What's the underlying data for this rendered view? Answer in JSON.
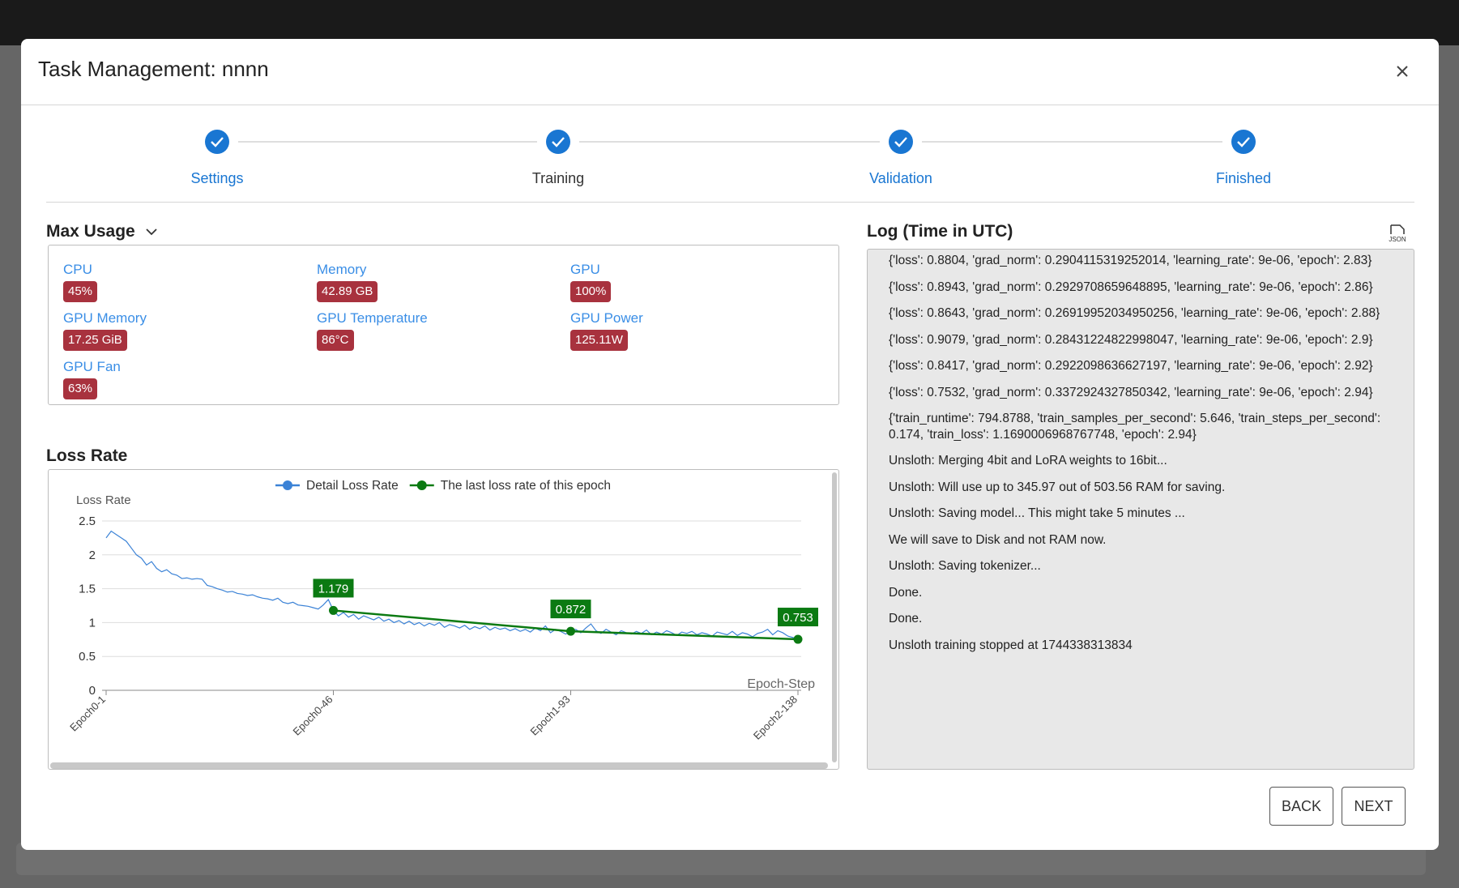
{
  "header": {
    "title": "Task Management: nnnn"
  },
  "steps": [
    "Settings",
    "Training",
    "Validation",
    "Finished"
  ],
  "max_usage": {
    "title": "Max Usage",
    "items": [
      {
        "label": "CPU",
        "value": "45%"
      },
      {
        "label": "Memory",
        "value": "42.89 GB"
      },
      {
        "label": "GPU",
        "value": "100%"
      },
      {
        "label": "GPU Memory",
        "value": "17.25 GiB"
      },
      {
        "label": "GPU Temperature",
        "value": "86°C"
      },
      {
        "label": "GPU Power",
        "value": "125.11W"
      },
      {
        "label": "GPU Fan",
        "value": "63%"
      }
    ]
  },
  "loss_rate": {
    "title": "Loss Rate"
  },
  "chart_data": {
    "type": "line",
    "y_label": "Loss Rate",
    "x_label": "Epoch-Step",
    "categories": [
      "Epoch0-1",
      null,
      null,
      null,
      null,
      null,
      null,
      null,
      null,
      null,
      null,
      null,
      null,
      null,
      null,
      null,
      null,
      null,
      null,
      null,
      null,
      null,
      null,
      null,
      null,
      null,
      null,
      null,
      null,
      null,
      null,
      null,
      null,
      null,
      null,
      null,
      null,
      null,
      null,
      null,
      null,
      null,
      null,
      null,
      null,
      "Epoch0-46",
      null,
      null,
      null,
      null,
      null,
      null,
      null,
      null,
      null,
      null,
      null,
      null,
      null,
      null,
      null,
      null,
      null,
      null,
      null,
      null,
      null,
      null,
      null,
      null,
      null,
      null,
      null,
      null,
      null,
      null,
      null,
      null,
      null,
      null,
      null,
      null,
      null,
      null,
      null,
      null,
      null,
      null,
      null,
      null,
      null,
      null,
      "Epoch1-93",
      null,
      null,
      null,
      null,
      null,
      null,
      null,
      null,
      null,
      null,
      null,
      null,
      null,
      null,
      null,
      null,
      null,
      null,
      null,
      null,
      null,
      null,
      null,
      null,
      null,
      null,
      null,
      null,
      null,
      null,
      null,
      null,
      null,
      null,
      null,
      null,
      null,
      null,
      null,
      null,
      null,
      null,
      null,
      null,
      "Epoch2-138"
    ],
    "series": [
      {
        "name": "Detail Loss Rate",
        "color": "#3b82d6",
        "values": [
          2.25,
          2.35,
          2.3,
          2.25,
          2.2,
          2.1,
          2.0,
          1.95,
          1.85,
          1.9,
          1.8,
          1.75,
          1.78,
          1.72,
          1.7,
          1.65,
          1.66,
          1.64,
          1.65,
          1.64,
          1.55,
          1.53,
          1.5,
          1.48,
          1.45,
          1.46,
          1.43,
          1.42,
          1.4,
          1.41,
          1.38,
          1.36,
          1.35,
          1.33,
          1.36,
          1.3,
          1.28,
          1.3,
          1.26,
          1.25,
          1.24,
          1.22,
          1.2,
          1.26,
          1.34,
          1.179,
          1.1,
          1.15,
          1.08,
          1.12,
          1.05,
          1.1,
          1.07,
          1.04,
          1.08,
          1.02,
          1.05,
          1.0,
          1.03,
          0.98,
          1.02,
          0.97,
          1.0,
          0.95,
          0.99,
          0.96,
          1.0,
          0.93,
          0.97,
          0.95,
          0.92,
          0.96,
          0.9,
          0.94,
          0.91,
          0.95,
          0.89,
          0.93,
          0.9,
          0.92,
          0.88,
          0.91,
          0.87,
          0.9,
          0.86,
          0.92,
          0.88,
          0.95,
          0.85,
          0.9,
          0.87,
          0.83,
          0.872,
          0.9,
          0.85,
          0.92,
          0.98,
          0.88,
          0.84,
          0.9,
          0.86,
          0.82,
          0.88,
          0.85,
          0.83,
          0.87,
          0.84,
          0.89,
          0.82,
          0.86,
          0.83,
          0.88,
          0.85,
          0.81,
          0.86,
          0.84,
          0.87,
          0.82,
          0.85,
          0.83,
          0.8,
          0.86,
          0.84,
          0.82,
          0.87,
          0.81,
          0.85,
          0.83,
          0.79,
          0.84,
          0.86,
          0.9,
          0.82,
          0.88,
          0.85,
          0.8,
          0.78,
          0.753
        ]
      },
      {
        "name": "The last loss rate of this epoch",
        "color": "#0b7a12",
        "values": [
          null,
          null,
          null,
          null,
          null,
          null,
          null,
          null,
          null,
          null,
          null,
          null,
          null,
          null,
          null,
          null,
          null,
          null,
          null,
          null,
          null,
          null,
          null,
          null,
          null,
          null,
          null,
          null,
          null,
          null,
          null,
          null,
          null,
          null,
          null,
          null,
          null,
          null,
          null,
          null,
          null,
          null,
          null,
          null,
          null,
          1.179,
          null,
          null,
          null,
          null,
          null,
          null,
          null,
          null,
          null,
          null,
          null,
          null,
          null,
          null,
          null,
          null,
          null,
          null,
          null,
          null,
          null,
          null,
          null,
          null,
          null,
          null,
          null,
          null,
          null,
          null,
          null,
          null,
          null,
          null,
          null,
          null,
          null,
          null,
          null,
          null,
          null,
          null,
          null,
          null,
          null,
          null,
          0.872,
          null,
          null,
          null,
          null,
          null,
          null,
          null,
          null,
          null,
          null,
          null,
          null,
          null,
          null,
          null,
          null,
          null,
          null,
          null,
          null,
          null,
          null,
          null,
          null,
          null,
          null,
          null,
          null,
          null,
          null,
          null,
          null,
          null,
          null,
          null,
          null,
          null,
          null,
          null,
          null,
          null,
          null,
          null,
          null,
          0.753
        ]
      }
    ],
    "ylim": [
      0,
      2.5
    ],
    "yticks": [
      0,
      0.5,
      1,
      1.5,
      2,
      2.5
    ],
    "grid": true,
    "legend": "top"
  },
  "log": {
    "title": "Log (Time in UTC)",
    "lines": [
      "{'loss': 0.8804, 'grad_norm': 0.2904115319252014, 'learning_rate': 9e-06, 'epoch': 2.83}",
      "{'loss': 0.8943, 'grad_norm': 0.2929708659648895, 'learning_rate': 9e-06, 'epoch': 2.86}",
      "{'loss': 0.8643, 'grad_norm': 0.26919952034950256, 'learning_rate': 9e-06, 'epoch': 2.88}",
      "{'loss': 0.9079, 'grad_norm': 0.28431224822998047, 'learning_rate': 9e-06, 'epoch': 2.9}",
      "{'loss': 0.8417, 'grad_norm': 0.2922098636627197, 'learning_rate': 9e-06, 'epoch': 2.92}",
      "{'loss': 0.7532, 'grad_norm': 0.3372924327850342, 'learning_rate': 9e-06, 'epoch': 2.94}",
      "{'train_runtime': 794.8788, 'train_samples_per_second': 5.646, 'train_steps_per_second': 0.174, 'train_loss': 1.1690006968767748, 'epoch': 2.94}",
      "Unsloth: Merging 4bit and LoRA weights to 16bit...",
      "Unsloth: Will use up to 345.97 out of 503.56 RAM for saving.",
      "Unsloth: Saving model... This might take 5 minutes ...",
      "We will save to Disk and not RAM now.",
      "Unsloth: Saving tokenizer...",
      "Done.",
      "Done.",
      "Unsloth training stopped at 1744338313834"
    ]
  },
  "buttons": [
    "BACK",
    "NEXT"
  ]
}
